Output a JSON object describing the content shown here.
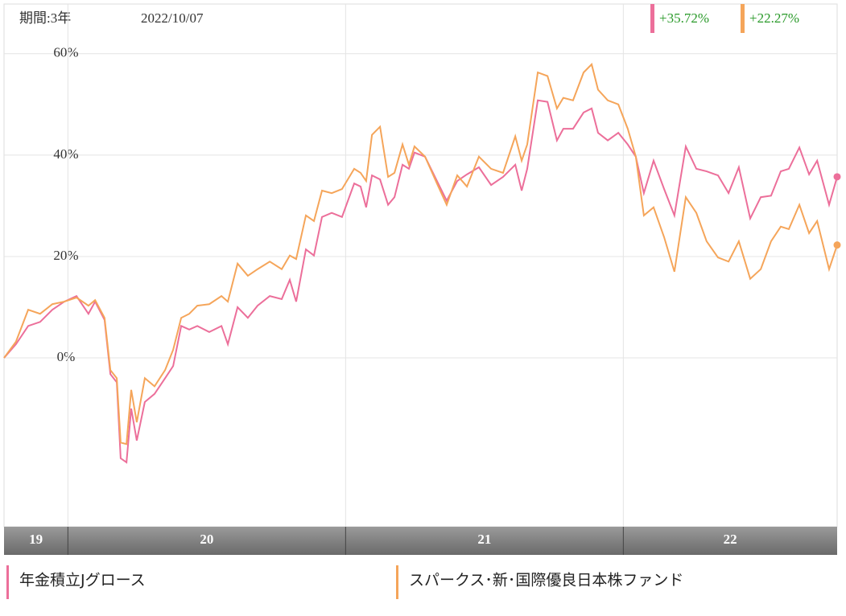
{
  "period": "期間:3年",
  "date": "2022/10/07",
  "chart_data": {
    "type": "line",
    "x": [
      19.77,
      19.813,
      19.857,
      19.9,
      19.944,
      19.987,
      20.031,
      20.074,
      20.098,
      20.132,
      20.153,
      20.176,
      20.19,
      20.211,
      20.228,
      20.248,
      20.277,
      20.312,
      20.35,
      20.379,
      20.408,
      20.437,
      20.466,
      20.509,
      20.553,
      20.576,
      20.611,
      20.648,
      20.683,
      20.727,
      20.77,
      20.799,
      20.822,
      20.857,
      20.886,
      20.915,
      20.95,
      20.987,
      21.031,
      21.054,
      21.074,
      21.095,
      21.124,
      21.153,
      21.176,
      21.205,
      21.228,
      21.248,
      21.286,
      21.329,
      21.364,
      21.402,
      21.437,
      21.48,
      21.524,
      21.567,
      21.611,
      21.634,
      21.654,
      21.692,
      21.727,
      21.761,
      21.784,
      21.819,
      21.857,
      21.886,
      21.909,
      21.944,
      21.982,
      22.016,
      22.045,
      22.074,
      22.109,
      22.147,
      22.184,
      22.225,
      22.263,
      22.3,
      22.341,
      22.379,
      22.416,
      22.457,
      22.495,
      22.532,
      22.567,
      22.596,
      22.634,
      22.669,
      22.698,
      22.741,
      22.77
    ],
    "series": [
      {
        "name": "年金積立Jグロース",
        "color": "#ec6f9a",
        "last_label": "+35.72%",
        "values": [
          0,
          2.7,
          6.3,
          7.1,
          9.5,
          11.1,
          12.2,
          8.7,
          11.1,
          7.5,
          -3.2,
          -4.8,
          -19.8,
          -20.6,
          -10,
          -16.3,
          -8.7,
          -7.1,
          -4,
          -1.6,
          6.3,
          5.6,
          6.3,
          5.1,
          6.3,
          2.7,
          10,
          7.9,
          10.3,
          12.2,
          11.6,
          15.4,
          11.1,
          21.4,
          20.2,
          27.8,
          28.6,
          27.8,
          34.4,
          33.8,
          29.7,
          36,
          35.2,
          30.2,
          31.7,
          38.1,
          37.3,
          40.5,
          39.7,
          34.9,
          31,
          34.9,
          36.2,
          37.6,
          34.1,
          35.7,
          38.1,
          33,
          37.3,
          50.8,
          50.5,
          42.9,
          45.2,
          45.2,
          48.4,
          49.2,
          44.4,
          42.9,
          44.4,
          42.1,
          39.7,
          32.5,
          38.9,
          33.3,
          28.1,
          41.7,
          37.3,
          36.8,
          36,
          32.5,
          37.6,
          27.5,
          31.7,
          32,
          36.8,
          37.3,
          41.5,
          36.2,
          38.9,
          30.2,
          35.72
        ]
      },
      {
        "name": "スパークス･新･国際優良日本株ファンド",
        "color": "#f5a55a",
        "last_label": "+22.27%",
        "values": [
          0,
          3.2,
          9.5,
          8.7,
          10.6,
          11.1,
          11.9,
          10.3,
          11.4,
          7.9,
          -2.4,
          -4,
          -16.7,
          -17,
          -6.3,
          -12.7,
          -4,
          -5.6,
          -2.4,
          1.6,
          7.9,
          8.7,
          10.3,
          10.6,
          12.2,
          11.1,
          18.6,
          16.2,
          17.5,
          19,
          17.5,
          20.2,
          19.5,
          28.1,
          27,
          33,
          32.5,
          33.3,
          37.3,
          36.5,
          34.9,
          44,
          45.6,
          35.7,
          36.5,
          42.1,
          38.1,
          41.7,
          39.7,
          34.4,
          30.2,
          36,
          33.8,
          39.7,
          37.3,
          36.5,
          43.7,
          38.9,
          42.1,
          56.3,
          55.6,
          49.2,
          51.3,
          50.8,
          56.3,
          57.9,
          52.9,
          50.8,
          50,
          45.2,
          39.7,
          28.1,
          29.7,
          23.8,
          17,
          31.7,
          28.6,
          23,
          19.8,
          19,
          23,
          15.6,
          17.5,
          23,
          25.9,
          25.4,
          30.2,
          24.6,
          27,
          17.5,
          22.27
        ]
      }
    ],
    "xlim": [
      19.77,
      22.77
    ],
    "xticks": [
      {
        "value": 19.885,
        "label": "19"
      },
      {
        "value": 20.5,
        "label": "20"
      },
      {
        "value": 21.5,
        "label": "21"
      },
      {
        "value": 22.385,
        "label": "22"
      }
    ],
    "xgrid": [
      20,
      21,
      22
    ],
    "ylim": [
      -33.3,
      69.8
    ],
    "yticks": [
      {
        "value": 0,
        "label": "0%"
      },
      {
        "value": 20,
        "label": "20%"
      },
      {
        "value": 40,
        "label": "40%"
      },
      {
        "value": 60,
        "label": "60%"
      }
    ],
    "grid": true
  }
}
